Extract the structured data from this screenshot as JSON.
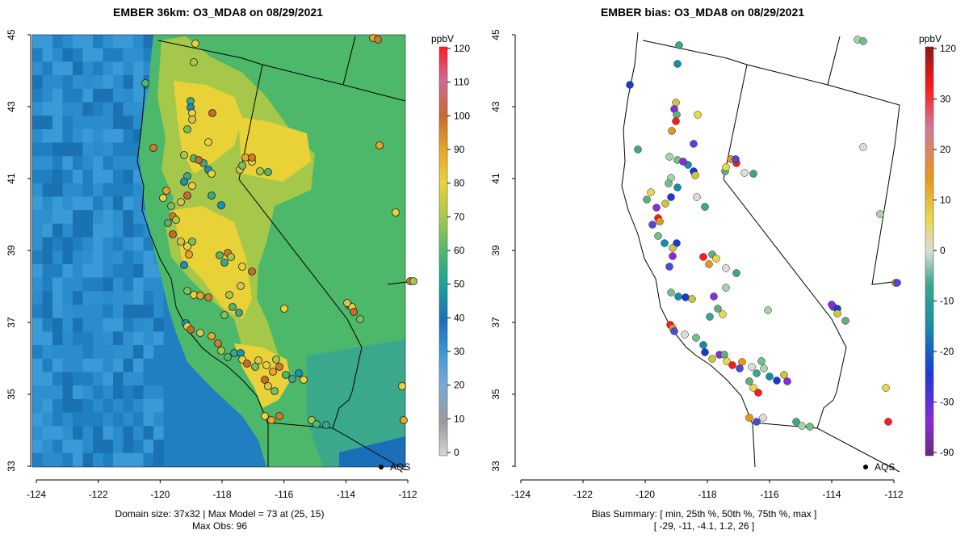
{
  "colors": {
    "ocean": "#1f7fc0",
    "background": "#ffffff"
  },
  "left_panel": {
    "title": "EMBER 36km: O3_MDA8 on 08/29/2021",
    "caption_line1": "Domain size: 37x32 | Max Model = 73 at (25, 15)",
    "caption_line2": "Max Obs: 96",
    "colorbar_unit": "ppbV",
    "colorbar_ticks": [
      "120",
      "110",
      "100",
      "90",
      "80",
      "70",
      "60",
      "50",
      "40",
      "30",
      "20",
      "10",
      "0"
    ],
    "lat_ticks": [
      "45",
      "43",
      "41",
      "39",
      "37",
      "35",
      "33"
    ],
    "lon_ticks": [
      "-124",
      "-122",
      "-120",
      "-118",
      "-116",
      "-114",
      "-112"
    ],
    "label_aqs": "AQS"
  },
  "right_panel": {
    "title": "EMBER bias: O3_MDA8 on 08/29/2021",
    "caption_line1": "Bias Summary: [ min, 25th %, 50th %, 75th %, max ]",
    "caption_line2": "[ -29,   -11,   -4.1,   1.2,   26 ]",
    "colorbar_unit": "ppbV",
    "colorbar_ticks": [
      "120",
      "30",
      "20",
      "10",
      "0",
      "-10",
      "-20",
      "-30",
      "-90"
    ],
    "lat_ticks": [
      "45",
      "43",
      "41",
      "39",
      "37",
      "35",
      "33"
    ],
    "lon_ticks": [
      "-124",
      "-122",
      "-120",
      "-118",
      "-116",
      "-114",
      "-112"
    ],
    "label_aqs": "AQS"
  }
}
